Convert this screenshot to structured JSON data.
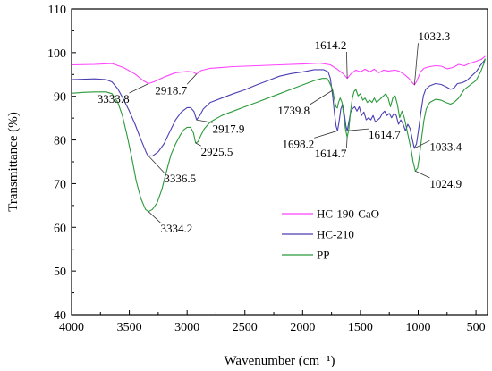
{
  "chart_data": {
    "type": "line",
    "xlabel": "Wavenumber (cm⁻¹)",
    "ylabel": "Transmittance (%)",
    "xlim": [
      4000,
      400
    ],
    "ylim": [
      40,
      110
    ],
    "x_ticks": [
      4000,
      3500,
      3000,
      2500,
      2000,
      1500,
      1000,
      500
    ],
    "x_tick_labels": [
      "4000",
      "3500",
      "3000",
      "2500",
      "2000",
      "1500",
      "1000",
      "500"
    ],
    "y_ticks": [
      40,
      50,
      60,
      70,
      80,
      90,
      100,
      110
    ],
    "y_tick_labels": [
      "40",
      "50",
      "60",
      "70",
      "80",
      "90",
      "100",
      "110"
    ],
    "grid": false,
    "legend_position": "bottom-right",
    "series": [
      {
        "name": "HC-190-CaO",
        "color": "#ff44ff",
        "points": [
          [
            4000,
            97.2
          ],
          [
            3800,
            97.3
          ],
          [
            3650,
            97.5
          ],
          [
            3550,
            96.6
          ],
          [
            3450,
            95.1
          ],
          [
            3380,
            93.6
          ],
          [
            3334,
            92.9
          ],
          [
            3280,
            93.4
          ],
          [
            3200,
            94.4
          ],
          [
            3100,
            95.4
          ],
          [
            3000,
            95.7
          ],
          [
            2950,
            95.6
          ],
          [
            2919,
            95.1
          ],
          [
            2880,
            95.9
          ],
          [
            2800,
            96.4
          ],
          [
            2600,
            96.8
          ],
          [
            2400,
            97.0
          ],
          [
            2200,
            97.2
          ],
          [
            2000,
            97.4
          ],
          [
            1850,
            97.6
          ],
          [
            1760,
            97.2
          ],
          [
            1700,
            96.2
          ],
          [
            1650,
            95.2
          ],
          [
            1614,
            94.1
          ],
          [
            1580,
            95.2
          ],
          [
            1540,
            96.0
          ],
          [
            1500,
            95.6
          ],
          [
            1460,
            96.2
          ],
          [
            1420,
            95.6
          ],
          [
            1380,
            96.2
          ],
          [
            1340,
            95.4
          ],
          [
            1300,
            96.0
          ],
          [
            1260,
            95.8
          ],
          [
            1200,
            96.0
          ],
          [
            1160,
            95.7
          ],
          [
            1120,
            95.0
          ],
          [
            1080,
            94.1
          ],
          [
            1050,
            93.1
          ],
          [
            1032,
            92.6
          ],
          [
            1010,
            93.6
          ],
          [
            980,
            95.6
          ],
          [
            950,
            96.4
          ],
          [
            900,
            96.8
          ],
          [
            850,
            97.0
          ],
          [
            800,
            96.9
          ],
          [
            750,
            96.3
          ],
          [
            700,
            96.6
          ],
          [
            650,
            97.3
          ],
          [
            600,
            97.0
          ],
          [
            550,
            97.6
          ],
          [
            500,
            98.0
          ],
          [
            450,
            98.5
          ],
          [
            420,
            99.2
          ]
        ]
      },
      {
        "name": "HC-210",
        "color": "#4a3fb3",
        "points": [
          [
            4000,
            93.8
          ],
          [
            3800,
            94.0
          ],
          [
            3700,
            93.8
          ],
          [
            3650,
            93.3
          ],
          [
            3600,
            91.7
          ],
          [
            3550,
            89.3
          ],
          [
            3500,
            86.6
          ],
          [
            3450,
            83.6
          ],
          [
            3400,
            80.1
          ],
          [
            3350,
            76.9
          ],
          [
            3337,
            76.4
          ],
          [
            3300,
            76.3
          ],
          [
            3250,
            77.3
          ],
          [
            3200,
            79.1
          ],
          [
            3150,
            81.9
          ],
          [
            3100,
            84.6
          ],
          [
            3050,
            86.4
          ],
          [
            3000,
            87.4
          ],
          [
            2970,
            87.4
          ],
          [
            2940,
            86.5
          ],
          [
            2918,
            84.6
          ],
          [
            2890,
            85.6
          ],
          [
            2860,
            87.1
          ],
          [
            2800,
            88.6
          ],
          [
            2700,
            89.6
          ],
          [
            2600,
            90.6
          ],
          [
            2500,
            91.5
          ],
          [
            2400,
            92.6
          ],
          [
            2300,
            93.6
          ],
          [
            2200,
            94.6
          ],
          [
            2100,
            95.2
          ],
          [
            2000,
            95.6
          ],
          [
            1900,
            96.1
          ],
          [
            1820,
            96.1
          ],
          [
            1780,
            95.6
          ],
          [
            1760,
            94.1
          ],
          [
            1740,
            90.1
          ],
          [
            1725,
            86.1
          ],
          [
            1710,
            83.1
          ],
          [
            1698,
            82.1
          ],
          [
            1685,
            84.1
          ],
          [
            1670,
            87.1
          ],
          [
            1655,
            88.1
          ],
          [
            1640,
            86.1
          ],
          [
            1625,
            83.1
          ],
          [
            1615,
            82.1
          ],
          [
            1600,
            84.1
          ],
          [
            1585,
            86.3
          ],
          [
            1570,
            87.1
          ],
          [
            1550,
            87.6
          ],
          [
            1530,
            86.6
          ],
          [
            1510,
            87.6
          ],
          [
            1490,
            85.6
          ],
          [
            1470,
            86.4
          ],
          [
            1450,
            84.6
          ],
          [
            1430,
            85.1
          ],
          [
            1410,
            84.6
          ],
          [
            1390,
            85.6
          ],
          [
            1370,
            84.1
          ],
          [
            1350,
            84.6
          ],
          [
            1330,
            85.1
          ],
          [
            1310,
            86.1
          ],
          [
            1290,
            86.6
          ],
          [
            1270,
            85.6
          ],
          [
            1250,
            86.1
          ],
          [
            1230,
            85.1
          ],
          [
            1210,
            86.1
          ],
          [
            1190,
            85.6
          ],
          [
            1170,
            83.6
          ],
          [
            1150,
            84.6
          ],
          [
            1130,
            83.6
          ],
          [
            1110,
            82.1
          ],
          [
            1090,
            83.6
          ],
          [
            1070,
            82.6
          ],
          [
            1050,
            80.1
          ],
          [
            1033,
            78.1
          ],
          [
            1015,
            79.1
          ],
          [
            995,
            82.6
          ],
          [
            975,
            86.6
          ],
          [
            955,
            90.1
          ],
          [
            935,
            91.6
          ],
          [
            900,
            92.4
          ],
          [
            850,
            92.9
          ],
          [
            800,
            92.7
          ],
          [
            760,
            92.2
          ],
          [
            720,
            91.6
          ],
          [
            690,
            91.9
          ],
          [
            660,
            92.9
          ],
          [
            620,
            93.1
          ],
          [
            580,
            93.6
          ],
          [
            540,
            94.6
          ],
          [
            500,
            95.6
          ],
          [
            460,
            97.1
          ],
          [
            430,
            98.1
          ],
          [
            420,
            98.6
          ]
        ]
      },
      {
        "name": "PP",
        "color": "#2a9a3a",
        "points": [
          [
            4000,
            90.7
          ],
          [
            3900,
            90.9
          ],
          [
            3800,
            91.0
          ],
          [
            3700,
            91.0
          ],
          [
            3650,
            90.6
          ],
          [
            3600,
            88.6
          ],
          [
            3560,
            85.6
          ],
          [
            3520,
            81.1
          ],
          [
            3480,
            76.1
          ],
          [
            3440,
            70.6
          ],
          [
            3400,
            66.6
          ],
          [
            3360,
            64.1
          ],
          [
            3334,
            63.6
          ],
          [
            3300,
            64.1
          ],
          [
            3260,
            65.6
          ],
          [
            3220,
            68.6
          ],
          [
            3180,
            72.6
          ],
          [
            3140,
            76.6
          ],
          [
            3100,
            79.1
          ],
          [
            3060,
            81.1
          ],
          [
            3030,
            82.3
          ],
          [
            3000,
            82.9
          ],
          [
            2970,
            82.9
          ],
          [
            2945,
            81.6
          ],
          [
            2926,
            79.3
          ],
          [
            2905,
            79.6
          ],
          [
            2880,
            81.1
          ],
          [
            2850,
            82.6
          ],
          [
            2800,
            84.1
          ],
          [
            2700,
            85.6
          ],
          [
            2600,
            86.6
          ],
          [
            2500,
            87.6
          ],
          [
            2400,
            88.6
          ],
          [
            2300,
            89.6
          ],
          [
            2200,
            90.6
          ],
          [
            2100,
            91.6
          ],
          [
            2000,
            92.6
          ],
          [
            1900,
            93.6
          ],
          [
            1830,
            94.1
          ],
          [
            1790,
            94.1
          ],
          [
            1770,
            93.3
          ],
          [
            1750,
            92.1
          ],
          [
            1740,
            91.4
          ],
          [
            1728,
            89.6
          ],
          [
            1712,
            87.6
          ],
          [
            1700,
            87.3
          ],
          [
            1690,
            88.6
          ],
          [
            1675,
            89.6
          ],
          [
            1660,
            88.6
          ],
          [
            1645,
            85.6
          ],
          [
            1630,
            82.6
          ],
          [
            1615,
            80.6
          ],
          [
            1600,
            82.6
          ],
          [
            1585,
            86.6
          ],
          [
            1570,
            89.6
          ],
          [
            1555,
            91.1
          ],
          [
            1540,
            91.6
          ],
          [
            1520,
            90.1
          ],
          [
            1500,
            90.6
          ],
          [
            1480,
            89.1
          ],
          [
            1460,
            89.6
          ],
          [
            1440,
            88.6
          ],
          [
            1420,
            89.1
          ],
          [
            1400,
            88.6
          ],
          [
            1380,
            89.6
          ],
          [
            1360,
            88.6
          ],
          [
            1340,
            89.1
          ],
          [
            1320,
            89.6
          ],
          [
            1300,
            90.1
          ],
          [
            1280,
            90.6
          ],
          [
            1260,
            89.6
          ],
          [
            1240,
            87.6
          ],
          [
            1220,
            89.6
          ],
          [
            1200,
            90.1
          ],
          [
            1180,
            88.1
          ],
          [
            1160,
            85.1
          ],
          [
            1140,
            86.6
          ],
          [
            1120,
            85.1
          ],
          [
            1100,
            82.6
          ],
          [
            1080,
            80.1
          ],
          [
            1060,
            77.6
          ],
          [
            1045,
            75.1
          ],
          [
            1025,
            72.9
          ],
          [
            1005,
            73.6
          ],
          [
            990,
            76.1
          ],
          [
            970,
            80.6
          ],
          [
            950,
            84.6
          ],
          [
            930,
            87.1
          ],
          [
            900,
            88.6
          ],
          [
            850,
            89.3
          ],
          [
            800,
            89.1
          ],
          [
            760,
            88.6
          ],
          [
            720,
            88.2
          ],
          [
            690,
            88.6
          ],
          [
            650,
            89.6
          ],
          [
            600,
            91.6
          ],
          [
            550,
            92.6
          ],
          [
            500,
            93.6
          ],
          [
            460,
            95.6
          ],
          [
            430,
            97.6
          ],
          [
            420,
            98.6
          ]
        ]
      }
    ],
    "annotations": [
      {
        "text": "3333.8",
        "x": 3333.8,
        "y": 92.9,
        "series": "HC-190-CaO",
        "label_at": [
          3500,
          88.5
        ]
      },
      {
        "text": "2918.7",
        "x": 2918.7,
        "y": 95.1,
        "series": "HC-190-CaO",
        "label_at": [
          3000,
          90.5
        ]
      },
      {
        "text": "1614.2",
        "x": 1614.2,
        "y": 94.1,
        "series": "HC-190-CaO",
        "label_at": [
          1620,
          100.8
        ]
      },
      {
        "text": "1032.3",
        "x": 1032.3,
        "y": 92.6,
        "series": "HC-190-CaO",
        "label_at": [
          1000,
          102.8
        ]
      },
      {
        "text": "3336.5",
        "x": 3336.5,
        "y": 76.4,
        "series": "HC-210",
        "label_at": [
          3200,
          70.3
        ]
      },
      {
        "text": "2917.9",
        "x": 2917.9,
        "y": 84.6,
        "series": "HC-210",
        "label_at": [
          2780,
          81.7
        ]
      },
      {
        "text": "2925.5",
        "x": 2925.5,
        "y": 79.3,
        "series": "PP",
        "label_at": [
          2880,
          76.4
        ]
      },
      {
        "text": "3334.2",
        "x": 3334.2,
        "y": 63.6,
        "series": "PP",
        "label_at": [
          3230,
          58.8
        ]
      },
      {
        "text": "1739.8",
        "x": 1739.8,
        "y": 91.4,
        "series": "PP",
        "label_at": [
          1940,
          85.8
        ]
      },
      {
        "text": "1698.2",
        "x": 1698.2,
        "y": 82.1,
        "series": "HC-210",
        "label_at": [
          1900,
          78.2
        ]
      },
      {
        "text": "1614.7",
        "x": 1614.7,
        "y": 82.1,
        "series": "HC-210",
        "label_at": [
          1430,
          80.3
        ]
      },
      {
        "text": "1614.7",
        "x": 1614.7,
        "y": 80.6,
        "series": "PP",
        "label_at": [
          1620,
          76.0
        ]
      },
      {
        "text": "1033.4",
        "x": 1033.4,
        "y": 78.1,
        "series": "HC-210",
        "label_at": [
          900,
          77.6
        ]
      },
      {
        "text": "1024.9",
        "x": 1024.9,
        "y": 72.9,
        "series": "PP",
        "label_at": [
          900,
          69.1
        ]
      }
    ]
  }
}
